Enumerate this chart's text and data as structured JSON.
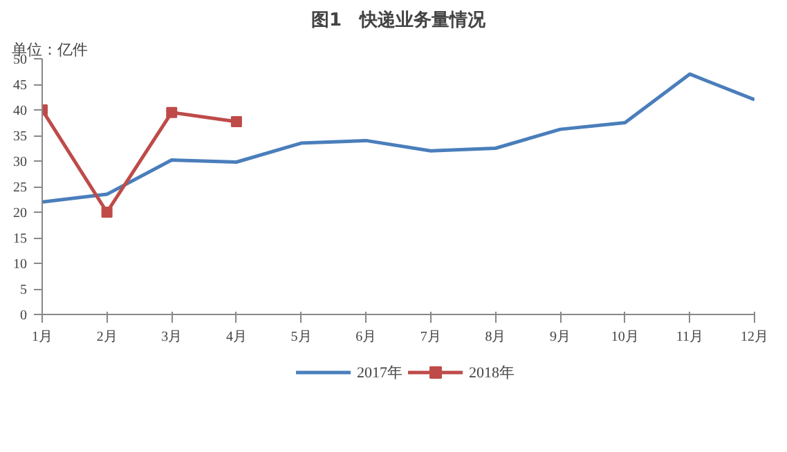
{
  "chart_data": {
    "type": "line",
    "title": "图1　快递业务量情况",
    "annotations": [
      "单位：亿件"
    ],
    "categories": [
      "1月",
      "2月",
      "3月",
      "4月",
      "5月",
      "6月",
      "7月",
      "8月",
      "9月",
      "10月",
      "11月",
      "12月"
    ],
    "series": [
      {
        "name": "2017年",
        "color": "#4a7ebb",
        "marker": "none",
        "values": [
          22,
          23.5,
          30.2,
          29.8,
          33.5,
          34,
          32,
          32.5,
          36.2,
          37.5,
          47,
          42
        ]
      },
      {
        "name": "2018年",
        "color": "#be4b48",
        "marker": "square",
        "values": [
          40,
          20,
          39.5,
          37.7,
          null,
          null,
          null,
          null,
          null,
          null,
          null,
          null
        ]
      }
    ],
    "ylim": [
      0,
      50
    ],
    "yticks": [
      0,
      5,
      10,
      15,
      20,
      25,
      30,
      35,
      40,
      45,
      50
    ],
    "grid": false,
    "legend": "bottom"
  }
}
